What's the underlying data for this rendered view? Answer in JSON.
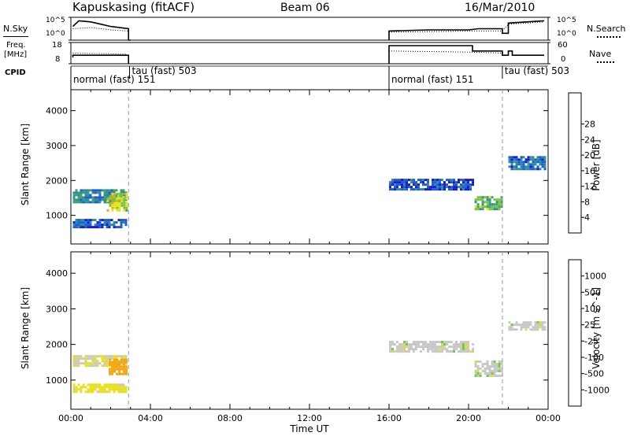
{
  "header": {
    "station": "Kapuskasing (fitACF)",
    "beam": "Beam 06",
    "date": "16/Mar/2010"
  },
  "strip_labels": {
    "nsky": "N.Sky",
    "nsky_ticks": [
      "10^5",
      "10^0"
    ],
    "freq_line1": "Freq.",
    "freq_line2": "[MHz]",
    "freq_ticks": [
      "18",
      "8"
    ],
    "cpid": "CPID",
    "nsearch": "N.Search",
    "nsearch_ticks": [
      "10^5",
      "10^0"
    ],
    "nave": "Nave",
    "nave_ticks": [
      "60",
      "0"
    ]
  },
  "cpid_labels": [
    {
      "text": "normal (fast) 151",
      "hour": 0.0
    },
    {
      "text": "tau (fast) 503",
      "hour": 2.95
    },
    {
      "text": "normal (fast) 151",
      "hour": 16.0
    },
    {
      "text": "tau (fast) 503",
      "hour": 21.7
    }
  ],
  "chart_data": [
    {
      "type": "heatmap",
      "name": "power",
      "xlabel": "",
      "ylabel": "Slant Range [km]",
      "xlim": [
        0,
        24
      ],
      "ylim": [
        180,
        4600
      ],
      "yticks": [
        1000,
        2000,
        3000,
        4000
      ],
      "colorbar_label": "Power [dB]",
      "colorbar_ticks": [
        "4",
        "8",
        "12",
        "16",
        "20",
        "24",
        "28"
      ],
      "colorbar_colors": [
        "#1a1adc",
        "#1e5fc8",
        "#2c8ca0",
        "#3fa070",
        "#7cc43a",
        "#e4e418",
        "#f4a614",
        "#f06a10",
        "#e81c10"
      ],
      "regions": [
        {
          "t0": 0.1,
          "t1": 2.8,
          "r0": 1350,
          "r1": 1750,
          "value": 10
        },
        {
          "t0": 0.1,
          "t1": 2.8,
          "r0": 650,
          "r1": 900,
          "value": 6
        },
        {
          "t0": 1.8,
          "t1": 2.8,
          "r0": 1150,
          "r1": 1650,
          "value": 18
        },
        {
          "t0": 16.0,
          "t1": 20.2,
          "r0": 1750,
          "r1": 2050,
          "value": 6
        },
        {
          "t0": 20.3,
          "t1": 21.7,
          "r0": 1150,
          "r1": 1550,
          "value": 14
        },
        {
          "t0": 22.0,
          "t1": 23.8,
          "r0": 2350,
          "r1": 2700,
          "value": 8
        }
      ]
    },
    {
      "type": "heatmap",
      "name": "velocity",
      "xlabel": "Time UT",
      "ylabel": "Slant Range [km]",
      "xlim": [
        0,
        24
      ],
      "ylim": [
        180,
        4600
      ],
      "yticks": [
        1000,
        2000,
        3000,
        4000
      ],
      "xticks": [
        "00:00",
        "04:00",
        "08:00",
        "12:00",
        "16:00",
        "20:00",
        "00:00"
      ],
      "colorbar_label": "Velocity [m s^-1]",
      "colorbar_ticks": [
        "1000",
        "500",
        "100",
        "25",
        "-25",
        "-100",
        "-500",
        "-1000"
      ],
      "colorbar_colors": [
        "#1a40c8",
        "#2c8c90",
        "#3cb048",
        "#6cd030",
        "#c8c8c8",
        "#e8e020",
        "#f4a614",
        "#f06a10",
        "#e81c10"
      ],
      "regions": [
        {
          "t0": 0.1,
          "t1": 2.8,
          "r0": 1400,
          "r1": 1700,
          "value": -25
        },
        {
          "t0": 0.1,
          "t1": 2.8,
          "r0": 650,
          "r1": 900,
          "value": -50
        },
        {
          "t0": 1.9,
          "t1": 2.8,
          "r0": 1150,
          "r1": 1600,
          "value": -300
        },
        {
          "t0": 16.0,
          "t1": 20.2,
          "r0": 1800,
          "r1": 2100,
          "value": 0
        },
        {
          "t0": 20.3,
          "t1": 21.7,
          "r0": 1150,
          "r1": 1550,
          "value": 0
        },
        {
          "t0": 22.0,
          "t1": 23.8,
          "r0": 2400,
          "r1": 2650,
          "value": 0
        }
      ]
    }
  ]
}
